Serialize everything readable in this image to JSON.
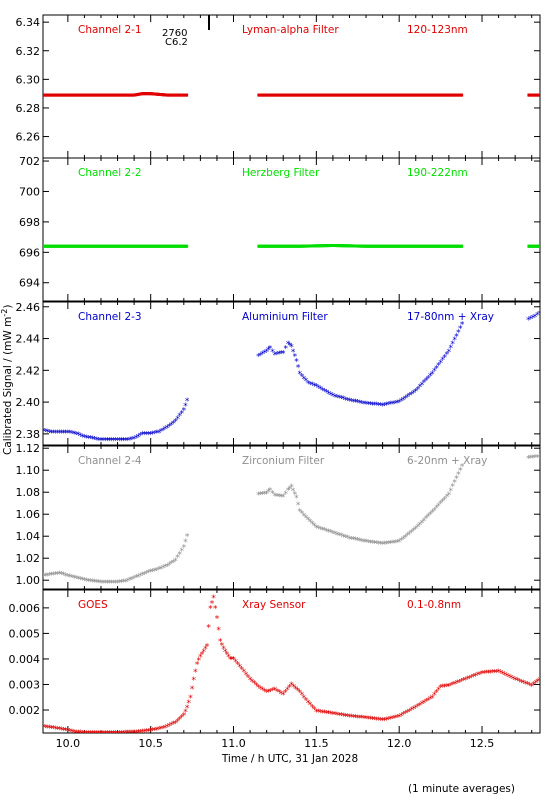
{
  "figure": {
    "ylabel": "Calibrated Signal / (mW m",
    "ylabel_sup": "-2",
    "ylabel_close": ")",
    "xlabel": "Time / h UTC, 31 Jan 2028",
    "footnote": "(1 minute averages)",
    "marker_text_top": "2760",
    "marker_text_bottom": "C6.2"
  },
  "chart_data": [
    {
      "type": "scatter",
      "channel": "Channel 2-1",
      "filter": "Lyman-alpha Filter",
      "band": "120-123nm",
      "color": "#e00000",
      "ylim": [
        6.245,
        6.345
      ],
      "yticks": [
        "6.34",
        "6.32",
        "6.30",
        "6.28",
        "6.26"
      ],
      "xlim": [
        9.85,
        12.85
      ],
      "segments": [
        {
          "x": [
            9.85,
            10.0,
            10.2,
            10.4,
            10.45,
            10.5,
            10.6,
            10.72
          ],
          "y": [
            6.289,
            6.289,
            6.289,
            6.289,
            6.29,
            6.29,
            6.289,
            6.289
          ]
        },
        {
          "x": [
            11.15,
            11.4,
            11.6,
            11.8,
            12.0,
            12.2,
            12.38
          ],
          "y": [
            6.289,
            6.289,
            6.289,
            6.289,
            6.289,
            6.289,
            6.289
          ]
        },
        {
          "x": [
            12.78,
            12.85
          ],
          "y": [
            6.289,
            6.289
          ]
        }
      ]
    },
    {
      "type": "scatter",
      "channel": "Channel 2-2",
      "filter": "Herzberg Filter",
      "band": "190-222nm",
      "color": "#00dd00",
      "ylim": [
        692.8,
        702.2
      ],
      "yticks": [
        "702",
        "700",
        "698",
        "696",
        "694"
      ],
      "xlim": [
        9.85,
        12.85
      ],
      "segments": [
        {
          "x": [
            9.85,
            10.1,
            10.4,
            10.72
          ],
          "y": [
            696.4,
            696.4,
            696.4,
            696.4
          ]
        },
        {
          "x": [
            11.15,
            11.4,
            11.6,
            11.8,
            12.0,
            12.2,
            12.38
          ],
          "y": [
            696.4,
            696.4,
            696.45,
            696.4,
            696.4,
            696.4,
            696.4
          ]
        },
        {
          "x": [
            12.78,
            12.85
          ],
          "y": [
            696.4,
            696.4
          ]
        }
      ]
    },
    {
      "type": "scatter",
      "channel": "Channel 2-3",
      "filter": "Aluminium Filter",
      "band": "17-80nm + Xray",
      "color": "#0000cc",
      "ylim": [
        2.373,
        2.463
      ],
      "yticks": [
        "2.46",
        "2.44",
        "2.42",
        "2.40",
        "2.38"
      ],
      "xlim": [
        9.85,
        12.85
      ],
      "segments": [
        {
          "x": [
            9.85,
            9.9,
            10.0,
            10.05,
            10.1,
            10.2,
            10.3,
            10.35,
            10.4,
            10.45,
            10.5,
            10.55,
            10.6,
            10.65,
            10.7,
            10.72
          ],
          "y": [
            2.382,
            2.381,
            2.381,
            2.38,
            2.378,
            2.376,
            2.376,
            2.376,
            2.377,
            2.38,
            2.38,
            2.381,
            2.384,
            2.388,
            2.395,
            2.401
          ]
        },
        {
          "x": [
            11.15,
            11.2,
            11.22,
            11.25,
            11.3,
            11.33,
            11.35,
            11.38,
            11.4,
            11.45,
            11.5,
            11.6,
            11.7,
            11.8,
            11.9,
            12.0,
            12.1,
            12.2,
            12.3,
            12.38
          ],
          "y": [
            2.429,
            2.432,
            2.434,
            2.43,
            2.431,
            2.437,
            2.435,
            2.426,
            2.418,
            2.412,
            2.41,
            2.404,
            2.401,
            2.399,
            2.398,
            2.4,
            2.407,
            2.418,
            2.432,
            2.449
          ]
        },
        {
          "x": [
            12.78,
            12.82,
            12.85
          ],
          "y": [
            2.452,
            2.454,
            2.456
          ]
        }
      ]
    },
    {
      "type": "scatter",
      "channel": "Channel 2-4",
      "filter": "Zirconium Filter",
      "band": "6-20nm + Xray",
      "color": "#909090",
      "ylim": [
        0.992,
        1.122
      ],
      "yticks": [
        "1.12",
        "1.10",
        "1.08",
        "1.06",
        "1.04",
        "1.02",
        "1.00"
      ],
      "xlim": [
        9.85,
        12.85
      ],
      "segments": [
        {
          "x": [
            9.85,
            9.9,
            9.95,
            10.0,
            10.05,
            10.1,
            10.2,
            10.3,
            10.35,
            10.4,
            10.45,
            10.5,
            10.55,
            10.6,
            10.65,
            10.7,
            10.72
          ],
          "y": [
            1.004,
            1.005,
            1.006,
            1.004,
            1.002,
            1.0,
            0.998,
            0.998,
            0.999,
            1.002,
            1.005,
            1.008,
            1.01,
            1.013,
            1.018,
            1.03,
            1.04
          ]
        },
        {
          "x": [
            11.15,
            11.2,
            11.22,
            11.25,
            11.3,
            11.33,
            11.35,
            11.38,
            11.4,
            11.45,
            11.5,
            11.6,
            11.7,
            11.8,
            11.9,
            12.0,
            12.1,
            12.2,
            12.3,
            12.38
          ],
          "y": [
            1.078,
            1.079,
            1.082,
            1.077,
            1.076,
            1.082,
            1.085,
            1.075,
            1.063,
            1.055,
            1.048,
            1.043,
            1.038,
            1.035,
            1.033,
            1.035,
            1.047,
            1.062,
            1.078,
            1.104
          ]
        },
        {
          "x": [
            12.78,
            12.82,
            12.85
          ],
          "y": [
            1.111,
            1.112,
            1.112
          ]
        }
      ]
    },
    {
      "type": "scatter",
      "channel": "GOES",
      "filter": "Xray Sensor",
      "band": "0.1-0.8nm",
      "color": "#e00000",
      "ylim": [
        0.0011,
        0.0067
      ],
      "yticks": [
        "0.006",
        "0.005",
        "0.004",
        "0.003",
        "0.002"
      ],
      "xticks": [
        "10.0",
        "10.5",
        "11.0",
        "11.5",
        "12.0",
        "12.5"
      ],
      "xtick_values": [
        10.0,
        10.5,
        11.0,
        11.5,
        12.0,
        12.5
      ],
      "xlim": [
        9.85,
        12.85
      ],
      "segments": [
        {
          "x": [
            9.85,
            9.9,
            9.95,
            10.0,
            10.05,
            10.1,
            10.2,
            10.3,
            10.4,
            10.45,
            10.5,
            10.55,
            10.6,
            10.65,
            10.7,
            10.72,
            10.74,
            10.76,
            10.78,
            10.8,
            10.82,
            10.84,
            10.86,
            10.88,
            10.9,
            10.92,
            10.94,
            10.96,
            10.98,
            11.0,
            11.05,
            11.1,
            11.15,
            11.2,
            11.25,
            11.3,
            11.35,
            11.4,
            11.45,
            11.5,
            11.6,
            11.7,
            11.8,
            11.9,
            12.0,
            12.1,
            12.2,
            12.25,
            12.3,
            12.4,
            12.5,
            12.6,
            12.7,
            12.8,
            12.85
          ],
          "y": [
            0.00135,
            0.0013,
            0.00125,
            0.0012,
            0.00112,
            0.0011,
            0.0011,
            0.0011,
            0.00112,
            0.00115,
            0.0012,
            0.00125,
            0.00135,
            0.0015,
            0.0018,
            0.0021,
            0.0025,
            0.0032,
            0.0038,
            0.0041,
            0.0043,
            0.0045,
            0.006,
            0.0064,
            0.0056,
            0.0047,
            0.0044,
            0.0042,
            0.004,
            0.004,
            0.0036,
            0.0032,
            0.0029,
            0.0027,
            0.0028,
            0.0026,
            0.003,
            0.0027,
            0.0023,
            0.00195,
            0.00185,
            0.00175,
            0.00168,
            0.0016,
            0.00175,
            0.0021,
            0.0025,
            0.0029,
            0.00295,
            0.0032,
            0.00345,
            0.0035,
            0.0032,
            0.00295,
            0.0032
          ]
        }
      ]
    }
  ]
}
